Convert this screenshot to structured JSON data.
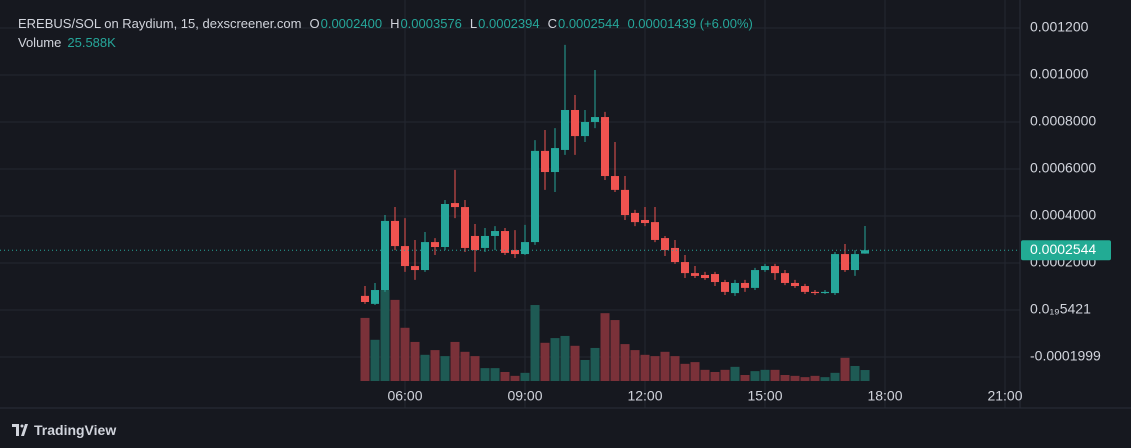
{
  "chart_data": {
    "type": "candlestick",
    "symbol": "EREBUS/SOL on Raydium, 15, dexscreener.com",
    "ohlc_legend": [
      {
        "key": "O",
        "value": "0.0002400"
      },
      {
        "key": "H",
        "value": "0.0003576"
      },
      {
        "key": "L",
        "value": "0.0002394"
      },
      {
        "key": "C",
        "value": "0.0002544"
      }
    ],
    "change": "0.00001439 (+6.00%)",
    "volume_name": "Volume",
    "volume_last": "25.588K",
    "last_price_label": "0.0002544",
    "brand": "TradingView",
    "up_color": "#26a69a",
    "down_color": "#ef5350",
    "up_volume_color": "#1e5a54",
    "down_volume_color": "#7a3139",
    "grid": true,
    "categories": [
      "05:00",
      "05:15",
      "05:30",
      "05:45",
      "06:00",
      "06:15",
      "06:30",
      "06:45",
      "07:00",
      "07:15",
      "07:30",
      "07:45",
      "08:00",
      "08:15",
      "08:30",
      "08:45",
      "09:00",
      "09:15",
      "09:30",
      "09:45",
      "10:00",
      "10:15",
      "10:30",
      "10:45",
      "11:00",
      "11:15",
      "11:30",
      "11:45",
      "12:00",
      "12:15",
      "12:30",
      "12:45",
      "13:00",
      "13:15",
      "13:30",
      "13:45",
      "14:00",
      "14:15",
      "14:30",
      "14:45",
      "15:00",
      "15:15",
      "15:30",
      "15:45",
      "16:00",
      "16:15",
      "16:30",
      "16:45",
      "17:00",
      "17:15",
      "17:30"
    ],
    "open": [
      6e-05,
      2.6e-05,
      8.5e-05,
      0.000379,
      0.000272,
      0.000187,
      0.00017,
      0.000289,
      0.000268,
      0.000455,
      0.000438,
      0.000315,
      0.000264,
      0.000315,
      0.000336,
      0.000255,
      0.000238,
      0.000289,
      0.000677,
      0.000587,
      0.000681,
      0.000851,
      0.00074,
      0.0008,
      0.000821,
      0.00057,
      0.000511,
      0.000413,
      0.000383,
      0.000374,
      0.000306,
      0.000264,
      0.000204,
      0.000157,
      0.000149,
      0.000153,
      0.000119,
      7.2e-05,
      0.000115,
      9.4e-05,
      0.00017,
      0.000187,
      0.000157,
      0.000115,
      0.000102,
      7.7e-05,
      7.2e-05,
      7.2e-05,
      0.000238,
      0.00017,
      0.00024
    ],
    "high": [
      0.000102,
      0.000115,
      0.000404,
      0.000438,
      0.000391,
      0.000298,
      0.000332,
      0.000306,
      0.000468,
      0.000596,
      0.000468,
      0.000366,
      0.000349,
      0.000357,
      0.000349,
      0.00034,
      0.000362,
      0.000723,
      0.000766,
      0.000774,
      0.001128,
      0.000915,
      0.000851,
      0.001021,
      0.000843,
      0.000715,
      0.00057,
      0.000426,
      0.000438,
      0.000438,
      0.000315,
      0.000298,
      0.000234,
      0.000187,
      0.000162,
      0.000162,
      0.000128,
      0.000128,
      0.000128,
      0.000179,
      0.000196,
      0.000196,
      0.00017,
      0.000128,
      0.000111,
      8.5e-05,
      8.5e-05,
      0.000247,
      0.000281,
      0.000255,
      0.0003576
    ],
    "low": [
      2.6e-05,
      2.1e-05,
      7.7e-05,
      0.000255,
      0.000162,
      0.000128,
      0.000162,
      0.000234,
      0.000255,
      0.000391,
      0.000247,
      0.000162,
      0.000247,
      0.000255,
      0.000234,
      0.000221,
      0.000234,
      0.000277,
      0.000511,
      0.000502,
      0.00066,
      0.00066,
      0.000715,
      0.000774,
      0.000553,
      0.000502,
      0.000383,
      0.000357,
      0.000357,
      0.000289,
      0.00023,
      0.000196,
      0.000136,
      0.000136,
      0.000128,
      0.000102,
      6.4e-05,
      6e-05,
      7.7e-05,
      8.5e-05,
      0.000162,
      0.000128,
      0.000106,
      9.4e-05,
      6.8e-05,
      6.4e-05,
      6.8e-05,
      6.4e-05,
      0.000162,
      0.000145,
      0.0002394
    ],
    "close": [
      3.4e-05,
      8.5e-05,
      0.000379,
      0.000272,
      0.000187,
      0.00017,
      0.000289,
      0.000268,
      0.000451,
      0.000438,
      0.000264,
      0.000255,
      0.000315,
      0.000336,
      0.000243,
      0.000238,
      0.000289,
      0.000677,
      0.000587,
      0.000689,
      0.000851,
      0.00074,
      0.0008,
      0.000821,
      0.00057,
      0.000511,
      0.000404,
      0.000374,
      0.00037,
      0.000298,
      0.000255,
      0.000204,
      0.000157,
      0.000145,
      0.000136,
      0.000119,
      7.7e-05,
      0.000115,
      9.4e-05,
      0.00017,
      0.000187,
      0.000157,
      0.000115,
      0.000102,
      7.7e-05,
      7.2e-05,
      7.7e-05,
      0.000238,
      0.00017,
      0.000238,
      0.0002544
    ],
    "volume": [
      147000,
      96000,
      212000,
      189000,
      124000,
      91000,
      61000,
      72000,
      58000,
      91000,
      68000,
      58000,
      30000,
      30000,
      21000,
      12000,
      19000,
      177000,
      89000,
      100000,
      105000,
      82000,
      49000,
      77000,
      158000,
      142000,
      86000,
      72000,
      61000,
      58000,
      68000,
      58000,
      40000,
      44000,
      26000,
      21000,
      26000,
      33000,
      14000,
      23000,
      26000,
      26000,
      14000,
      12000,
      9000,
      12000,
      9000,
      19000,
      54000,
      35000,
      25588
    ],
    "vlim": [
      0,
      500000
    ],
    "ylim": [
      -0.000417,
      0.001319
    ],
    "yticks": [
      {
        "value": -0.0001999,
        "label": "-0.0001999"
      },
      {
        "value": 5.421e-20,
        "label": "0.0₁₉5421"
      },
      {
        "value": 0.0002,
        "label": "0.0002000"
      },
      {
        "value": 0.0004,
        "label": "0.0004000"
      },
      {
        "value": 0.0006,
        "label": "0.0006000"
      },
      {
        "value": 0.0008,
        "label": "0.0008000"
      },
      {
        "value": 0.001,
        "label": "0.001000"
      },
      {
        "value": 0.0012,
        "label": "0.001200"
      }
    ],
    "xticks": [
      "06:00",
      "09:00",
      "12:00",
      "15:00",
      "18:00",
      "21:00"
    ]
  }
}
